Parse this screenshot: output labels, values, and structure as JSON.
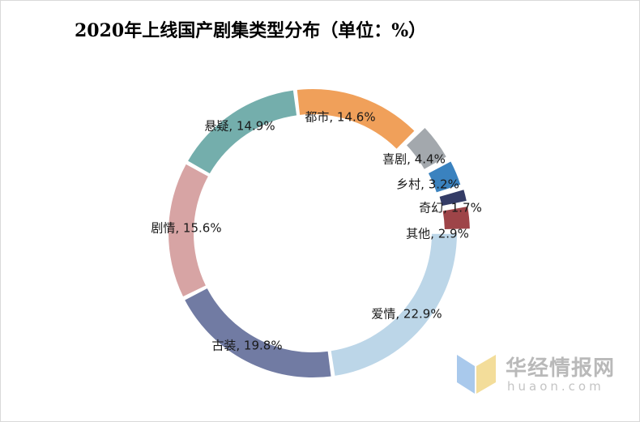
{
  "chart_data": {
    "type": "pie",
    "variant": "donut",
    "title": "2020年上线国产剧集类型分布（单位：%）",
    "slices": [
      {
        "label": "都市",
        "value": 14.6,
        "text": "都市, 14.6%",
        "color": "#f0a05a"
      },
      {
        "label": "喜剧",
        "value": 4.4,
        "text": "喜剧, 4.4%",
        "color": "#a3a8ad"
      },
      {
        "label": "乡村",
        "value": 3.2,
        "text": "乡村, 3.2%",
        "color": "#3a82bf"
      },
      {
        "label": "奇幻",
        "value": 1.7,
        "text": "奇幻, 1.7%",
        "color": "#343c66"
      },
      {
        "label": "其他",
        "value": 2.9,
        "text": "其他, 2.9%",
        "color": "#9e4448"
      },
      {
        "label": "爱情",
        "value": 22.9,
        "text": "爱情, 22.9%",
        "color": "#bcd6e8"
      },
      {
        "label": "古装",
        "value": 19.8,
        "text": "古装, 19.8%",
        "color": "#717ba3"
      },
      {
        "label": "剧情",
        "value": 15.6,
        "text": "剧情, 15.6%",
        "color": "#d7a4a4"
      },
      {
        "label": "悬疑",
        "value": 14.9,
        "text": "悬疑, 14.9%",
        "color": "#74aeac"
      }
    ],
    "legend": "none",
    "data_labels": "category and value"
  },
  "watermark": {
    "name_cn": "华经情报网",
    "name_en": "huaon.com"
  }
}
